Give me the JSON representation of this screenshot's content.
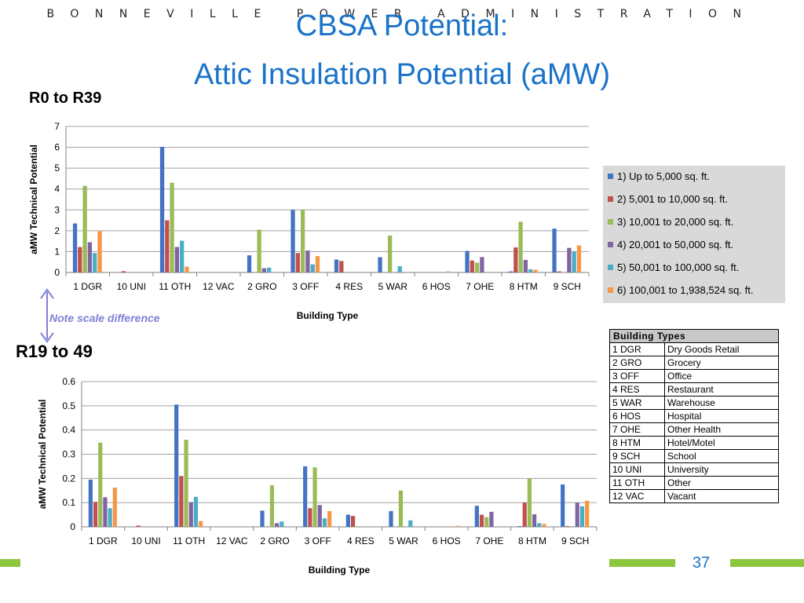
{
  "header": {
    "org": "BONNEVILLE POWER ADMINISTRATION"
  },
  "title": {
    "line1": "CBSA Potential:",
    "line2": "Attic Insulation Potential (aMW)"
  },
  "labels": {
    "top_section": "R0 to R39",
    "bottom_section": "R19 to 49",
    "note": "Note scale difference"
  },
  "page_number": "37",
  "colors": {
    "series": [
      "#4472c4",
      "#c0504d",
      "#9bbb59",
      "#8064a2",
      "#4bacc6",
      "#f79646"
    ],
    "title": "#1a73c9",
    "accent": "#8dc63f"
  },
  "legend": {
    "items": [
      "1) Up to 5,000 sq. ft.",
      "2) 5,001 to 10,000 sq. ft.",
      "3) 10,001 to 20,000 sq. ft.",
      "4) 20,001 to 50,000 sq. ft.",
      "5) 50,001 to 100,000 sq. ft.",
      "6) 100,001 to 1,938,524 sq. ft."
    ]
  },
  "building_types": {
    "header": "Building Types",
    "rows": [
      [
        "1 DGR",
        "Dry Goods Retail"
      ],
      [
        "2 GRO",
        "Grocery"
      ],
      [
        "3 OFF",
        "Office"
      ],
      [
        "4 RES",
        "Restaurant"
      ],
      [
        "5 WAR",
        "Warehouse"
      ],
      [
        "6 HOS",
        "Hospital"
      ],
      [
        "7 OHE",
        "Other Health"
      ],
      [
        "8 HTM",
        "Hotel/Motel"
      ],
      [
        "9 SCH",
        "School"
      ],
      [
        "10 UNI",
        "University"
      ],
      [
        "11 OTH",
        "Other"
      ],
      [
        "12 VAC",
        "Vacant"
      ]
    ]
  },
  "chart_data": [
    {
      "type": "bar",
      "xlabel": "Building Type",
      "ylabel": "aMW Technical Potential",
      "ylim": [
        0,
        7
      ],
      "yticks": [
        "0",
        "1",
        "2",
        "3",
        "4",
        "5",
        "6",
        "7"
      ],
      "grid": true,
      "legend_position": "right",
      "categories": [
        "1 DGR",
        "10 UNI",
        "11 OTH",
        "12 VAC",
        "2 GRO",
        "3 OFF",
        "4 RES",
        "5 WAR",
        "6 HOS",
        "7 OHE",
        "8 HTM",
        "9 SCH"
      ],
      "series": [
        {
          "name": "1) Up to 5,000 sq. ft.",
          "values": [
            2.35,
            0,
            6.02,
            0,
            0.82,
            3.0,
            0.62,
            0.73,
            0,
            1.03,
            0.05,
            2.1
          ]
        },
        {
          "name": "2) 5,001 to 10,000 sq. ft.",
          "values": [
            1.22,
            0.06,
            2.5,
            0,
            0,
            0.93,
            0.55,
            0,
            0,
            0.57,
            1.2,
            0.05
          ]
        },
        {
          "name": "3) 10,001 to 20,000 sq. ft.",
          "values": [
            4.15,
            0,
            4.3,
            0,
            2.05,
            3.0,
            0,
            1.77,
            0,
            0.47,
            2.43,
            0
          ]
        },
        {
          "name": "4) 20,001 to 50,000 sq. ft.",
          "values": [
            1.45,
            0,
            1.22,
            0,
            0.2,
            1.05,
            0,
            0,
            0,
            0.74,
            0.6,
            1.18
          ]
        },
        {
          "name": "5) 50,001 to 100,000 sq. ft.",
          "values": [
            0.93,
            0,
            1.52,
            0,
            0.23,
            0.39,
            0,
            0.3,
            0,
            0,
            0.15,
            1.0
          ]
        },
        {
          "name": "6) 100,001 to 1,938,524 sq. ft.",
          "values": [
            1.97,
            0,
            0.28,
            0,
            0,
            0.78,
            0,
            0,
            0.05,
            0,
            0.13,
            1.3
          ]
        }
      ]
    },
    {
      "type": "bar",
      "xlabel": "Building Type",
      "ylabel": "aMW Technical Potential",
      "ylim": [
        0,
        0.6
      ],
      "yticks": [
        "0",
        "0.1",
        "0.2",
        "0.3",
        "0.4",
        "0.5",
        "0.6"
      ],
      "grid": true,
      "categories": [
        "1 DGR",
        "10 UNI",
        "11 OTH",
        "12 VAC",
        "2 GRO",
        "3 OFF",
        "4 RES",
        "5 WAR",
        "6 HOS",
        "7 OHE",
        "8 HTM",
        "9 SCH"
      ],
      "series": [
        {
          "name": "1) Up to 5,000 sq. ft.",
          "values": [
            0.195,
            0,
            0.505,
            0,
            0.067,
            0.25,
            0.05,
            0.065,
            0,
            0.087,
            0.003,
            0.175
          ]
        },
        {
          "name": "2) 5,001 to 10,000 sq. ft.",
          "values": [
            0.103,
            0.005,
            0.21,
            0,
            0,
            0.077,
            0.045,
            0,
            0,
            0.05,
            0.1,
            0.003
          ]
        },
        {
          "name": "3) 10,001 to 20,000 sq. ft.",
          "values": [
            0.348,
            0,
            0.36,
            0,
            0.172,
            0.246,
            0,
            0.15,
            0,
            0.04,
            0.2,
            0
          ]
        },
        {
          "name": "4) 20,001 to 50,000 sq. ft.",
          "values": [
            0.122,
            0,
            0.102,
            0,
            0.015,
            0.09,
            0,
            0,
            0,
            0.062,
            0.052,
            0.1
          ]
        },
        {
          "name": "5) 50,001 to 100,000 sq. ft.",
          "values": [
            0.077,
            0,
            0.124,
            0,
            0.022,
            0.035,
            0,
            0.027,
            0,
            0,
            0.015,
            0.085
          ]
        },
        {
          "name": "6) 100,001 to 1,938,524 sq. ft.",
          "values": [
            0.162,
            0,
            0.024,
            0,
            0,
            0.065,
            0,
            0,
            0.004,
            0,
            0.012,
            0.108
          ]
        }
      ]
    }
  ]
}
